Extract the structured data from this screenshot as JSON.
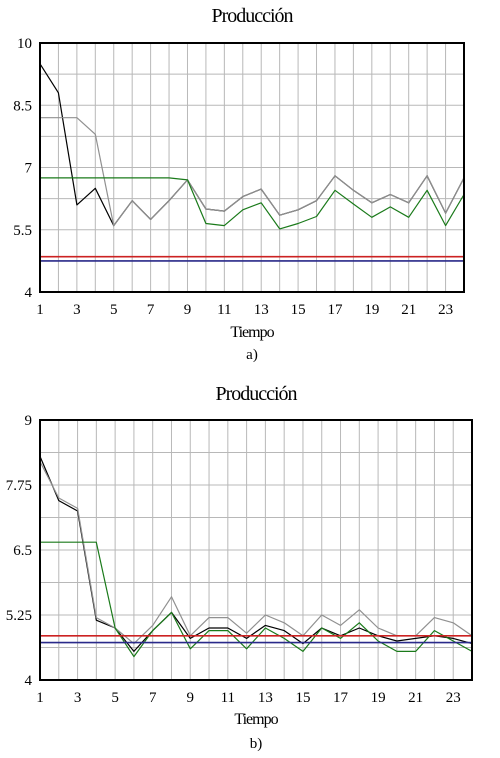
{
  "chart_data": [
    {
      "type": "line",
      "panel_label": "a)",
      "title": "Producción",
      "xlabel": "Tiempo",
      "ylabel": "",
      "xlim": [
        1,
        24
      ],
      "ylim": [
        4,
        10
      ],
      "y_ticks": [
        "4",
        "5.5",
        "7",
        "8.5",
        "10"
      ],
      "y_tick_values": [
        4,
        5.5,
        7,
        8.5,
        10
      ],
      "x_ticks": [
        "1",
        "3",
        "5",
        "7",
        "9",
        "11",
        "13",
        "15",
        "17",
        "19",
        "21",
        "23"
      ],
      "x_tick_values": [
        1,
        3,
        5,
        7,
        9,
        11,
        13,
        15,
        17,
        19,
        21,
        23
      ],
      "grid": true,
      "x": [
        1,
        2,
        3,
        4,
        5,
        6,
        7,
        8,
        9,
        10,
        11,
        12,
        13,
        14,
        15,
        16,
        17,
        18,
        19,
        20,
        21,
        22,
        23,
        24
      ],
      "series": [
        {
          "color": "#000000",
          "values": [
            9.5,
            8.8,
            6.1,
            6.5,
            5.6,
            6.2,
            5.75,
            6.2,
            6.7,
            6.0,
            5.95,
            6.3,
            6.48,
            5.85,
            5.98,
            6.2,
            6.8,
            6.45,
            6.15,
            6.35,
            6.15,
            6.8,
            5.9,
            6.75
          ]
        },
        {
          "color": "#909090",
          "values": [
            8.2,
            8.2,
            8.2,
            7.8,
            5.6,
            6.2,
            5.75,
            6.2,
            6.7,
            6.0,
            5.95,
            6.3,
            6.48,
            5.85,
            5.98,
            6.2,
            6.8,
            6.45,
            6.15,
            6.35,
            6.15,
            6.8,
            5.9,
            6.75
          ]
        },
        {
          "color": "#1a7a1a",
          "values": [
            6.75,
            6.75,
            6.75,
            6.75,
            6.75,
            6.75,
            6.75,
            6.75,
            6.7,
            5.65,
            5.6,
            5.98,
            6.15,
            5.52,
            5.65,
            5.82,
            6.45,
            6.12,
            5.8,
            6.05,
            5.8,
            6.45,
            5.6,
            6.35
          ]
        },
        {
          "color": "#cc2222",
          "values": [
            4.85,
            4.85,
            4.85,
            4.85,
            4.85,
            4.85,
            4.85,
            4.85,
            4.85,
            4.85,
            4.85,
            4.85,
            4.85,
            4.85,
            4.85,
            4.85,
            4.85,
            4.85,
            4.85,
            4.85,
            4.85,
            4.85,
            4.85,
            4.85
          ]
        },
        {
          "color": "#2a2a8a",
          "values": [
            4.75,
            4.75,
            4.75,
            4.75,
            4.75,
            4.75,
            4.75,
            4.75,
            4.75,
            4.75,
            4.75,
            4.75,
            4.75,
            4.75,
            4.75,
            4.75,
            4.75,
            4.75,
            4.75,
            4.75,
            4.75,
            4.75,
            4.75,
            4.75
          ]
        }
      ]
    },
    {
      "type": "line",
      "panel_label": "b)",
      "title": "Producción",
      "xlabel": "Tiempo",
      "ylabel": "",
      "xlim": [
        1,
        24
      ],
      "ylim": [
        4,
        9
      ],
      "y_ticks": [
        "4",
        "5.25",
        "6.5",
        "7.75",
        "9"
      ],
      "y_tick_values": [
        4,
        5.25,
        6.5,
        7.75,
        9
      ],
      "x_ticks": [
        "1",
        "3",
        "5",
        "7",
        "9",
        "11",
        "13",
        "15",
        "17",
        "19",
        "21",
        "23"
      ],
      "x_tick_values": [
        1,
        3,
        5,
        7,
        9,
        11,
        13,
        15,
        17,
        19,
        21,
        23
      ],
      "grid": true,
      "x": [
        1,
        2,
        3,
        4,
        5,
        6,
        7,
        8,
        9,
        10,
        11,
        12,
        13,
        14,
        15,
        16,
        17,
        18,
        19,
        20,
        21,
        22,
        23,
        24
      ],
      "series": [
        {
          "color": "#000000",
          "values": [
            8.3,
            7.45,
            7.25,
            5.15,
            5.0,
            4.55,
            4.95,
            5.3,
            4.8,
            5.0,
            5.0,
            4.8,
            5.05,
            4.95,
            4.7,
            5.0,
            4.85,
            5.0,
            4.85,
            4.75,
            4.8,
            4.85,
            4.8,
            4.7
          ]
        },
        {
          "color": "#909090",
          "values": [
            8.2,
            7.5,
            7.3,
            5.2,
            5.0,
            4.7,
            5.05,
            5.6,
            4.85,
            5.2,
            5.2,
            4.9,
            5.25,
            5.1,
            4.85,
            5.25,
            5.05,
            5.35,
            5.0,
            4.85,
            4.85,
            5.2,
            5.1,
            4.85
          ]
        },
        {
          "color": "#1a7a1a",
          "values": [
            6.65,
            6.65,
            6.65,
            6.65,
            5.0,
            4.45,
            4.95,
            5.3,
            4.6,
            4.95,
            4.95,
            4.6,
            5.0,
            4.8,
            4.55,
            5.0,
            4.8,
            5.1,
            4.75,
            4.55,
            4.55,
            4.95,
            4.75,
            4.55
          ]
        },
        {
          "color": "#cc2222",
          "values": [
            4.85,
            4.85,
            4.85,
            4.85,
            4.85,
            4.85,
            4.85,
            4.85,
            4.85,
            4.85,
            4.85,
            4.85,
            4.85,
            4.85,
            4.85,
            4.85,
            4.85,
            4.85,
            4.85,
            4.85,
            4.85,
            4.85,
            4.85,
            4.85
          ]
        },
        {
          "color": "#2a2a8a",
          "values": [
            4.72,
            4.72,
            4.72,
            4.72,
            4.72,
            4.72,
            4.72,
            4.72,
            4.72,
            4.72,
            4.72,
            4.72,
            4.72,
            4.72,
            4.72,
            4.72,
            4.72,
            4.72,
            4.72,
            4.72,
            4.72,
            4.72,
            4.72,
            4.72
          ]
        }
      ]
    }
  ]
}
